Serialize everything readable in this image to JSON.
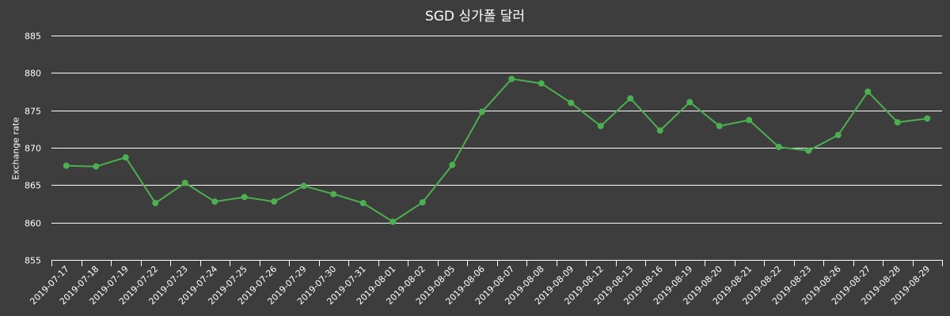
{
  "chart_data": {
    "type": "line",
    "title": "SGD 싱가폴 달러",
    "xlabel": "",
    "ylabel": "Exchange rate",
    "ylim": [
      855,
      885
    ],
    "yticks": [
      855,
      860,
      865,
      870,
      875,
      880,
      885
    ],
    "grid": true,
    "legend": null,
    "categories": [
      "2019-07-17",
      "2019-07-18",
      "2019-07-19",
      "2019-07-22",
      "2019-07-23",
      "2019-07-24",
      "2019-07-25",
      "2019-07-26",
      "2019-07-29",
      "2019-07-30",
      "2019-07-31",
      "2019-08-01",
      "2019-08-02",
      "2019-08-05",
      "2019-08-06",
      "2019-08-07",
      "2019-08-08",
      "2019-08-09",
      "2019-08-12",
      "2019-08-13",
      "2019-08-16",
      "2019-08-19",
      "2019-08-20",
      "2019-08-21",
      "2019-08-22",
      "2019-08-23",
      "2019-08-26",
      "2019-08-27",
      "2019-08-28",
      "2019-08-29"
    ],
    "series": [
      {
        "name": "SGD",
        "color": "#4caf50",
        "values": [
          867.6,
          867.5,
          868.7,
          862.6,
          865.3,
          862.8,
          863.4,
          862.8,
          864.9,
          863.8,
          862.6,
          860.1,
          862.7,
          867.7,
          874.8,
          879.2,
          878.6,
          876.0,
          872.9,
          876.6,
          872.3,
          876.1,
          872.9,
          873.7,
          870.1,
          869.6,
          871.7,
          877.5,
          873.4,
          873.9
        ]
      }
    ]
  },
  "colors": {
    "background": "#3d3d3d",
    "grid": "#ffffff",
    "text": "#ffffff",
    "line": "#4caf50"
  }
}
